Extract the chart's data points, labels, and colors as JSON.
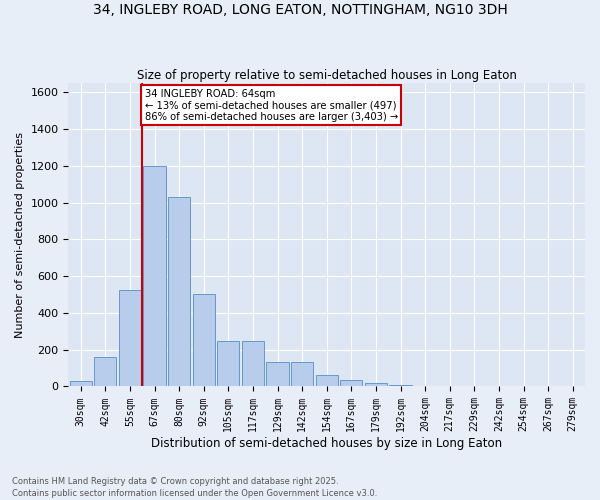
{
  "title": "34, INGLEBY ROAD, LONG EATON, NOTTINGHAM, NG10 3DH",
  "subtitle": "Size of property relative to semi-detached houses in Long Eaton",
  "xlabel": "Distribution of semi-detached houses by size in Long Eaton",
  "ylabel": "Number of semi-detached properties",
  "footer1": "Contains HM Land Registry data © Crown copyright and database right 2025.",
  "footer2": "Contains public sector information licensed under the Open Government Licence v3.0.",
  "categories": [
    "30sqm",
    "42sqm",
    "55sqm",
    "67sqm",
    "80sqm",
    "92sqm",
    "105sqm",
    "117sqm",
    "129sqm",
    "142sqm",
    "154sqm",
    "167sqm",
    "179sqm",
    "192sqm",
    "204sqm",
    "217sqm",
    "229sqm",
    "242sqm",
    "254sqm",
    "267sqm",
    "279sqm"
  ],
  "values": [
    30,
    160,
    525,
    1200,
    1030,
    505,
    245,
    245,
    135,
    135,
    60,
    35,
    20,
    10,
    5,
    2,
    1,
    0,
    0,
    0,
    0
  ],
  "bar_color": "#b8ccec",
  "bar_edge_color": "#6699cc",
  "background_color": "#dde6f3",
  "fig_background_color": "#e8eef8",
  "grid_color": "#ffffff",
  "vline_x": 2.5,
  "vline_color": "#cc0000",
  "annotation_line1": "34 INGLEBY ROAD: 64sqm",
  "annotation_line2": "← 13% of semi-detached houses are smaller (497)",
  "annotation_line3": "86% of semi-detached houses are larger (3,403) →",
  "annotation_box_color": "#cc0000",
  "ylim": [
    0,
    1650
  ],
  "yticks": [
    0,
    200,
    400,
    600,
    800,
    1000,
    1200,
    1400,
    1600
  ]
}
